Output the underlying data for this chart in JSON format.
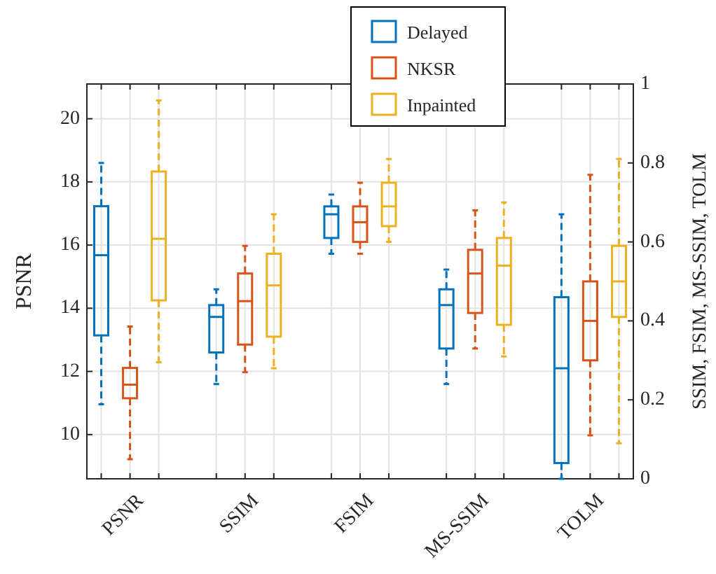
{
  "chart_data": {
    "type": "box",
    "categories": [
      "PSNR",
      "SSIM",
      "FSIM",
      "MS-SSIM",
      "TOLM"
    ],
    "ylabel": "PSNR",
    "y2label": "SSIM, FSIM, MS-SSIM, TOLM",
    "ylim": [
      8.6,
      21.1
    ],
    "yticks": [
      10,
      12,
      14,
      16,
      18,
      20
    ],
    "y2lim": [
      0,
      1
    ],
    "y2ticks": [
      0,
      0.2,
      0.4,
      0.6,
      0.8,
      1
    ],
    "grid": true,
    "legend": "top",
    "line_style": "dashed",
    "series": [
      {
        "name": "Delayed",
        "color": "#0072bd",
        "axis": "y",
        "boxes": [
          {
            "low": 10.96,
            "q1": 13.14,
            "median": 15.68,
            "q3": 17.23,
            "high": 18.6
          },
          null,
          null,
          null,
          null
        ]
      },
      {
        "name": "NKSR",
        "color": "#d95319",
        "axis": "y",
        "boxes": [
          {
            "low": 9.22,
            "q1": 11.15,
            "median": 11.58,
            "q3": 12.11,
            "high": 13.42
          },
          null,
          null,
          null,
          null
        ]
      },
      {
        "name": "Inpainted",
        "color": "#edb120",
        "axis": "y",
        "boxes": [
          {
            "low": 12.29,
            "q1": 14.25,
            "median": 16.2,
            "q3": 18.33,
            "high": 20.58
          },
          null,
          null,
          null,
          null
        ]
      },
      {
        "color": "#0072bd",
        "axis": "y2",
        "boxes": [
          null,
          {
            "low": 0.24,
            "q1": 0.32,
            "median": 0.41,
            "q3": 0.44,
            "high": 0.48
          },
          {
            "low": 0.57,
            "q1": 0.61,
            "median": 0.67,
            "q3": 0.69,
            "high": 0.72
          },
          {
            "low": 0.24,
            "q1": 0.33,
            "median": 0.44,
            "q3": 0.48,
            "high": 0.53
          },
          {
            "low": 0,
            "q1": 0.04,
            "median": 0.28,
            "q3": 0.46,
            "high": 0.67
          }
        ]
      },
      {
        "color": "#d95319",
        "axis": "y2",
        "boxes": [
          null,
          {
            "low": 0.27,
            "q1": 0.34,
            "median": 0.45,
            "q3": 0.52,
            "high": 0.59
          },
          {
            "low": 0.57,
            "q1": 0.6,
            "median": 0.65,
            "q3": 0.69,
            "high": 0.75
          },
          {
            "low": 0.33,
            "q1": 0.42,
            "median": 0.52,
            "q3": 0.58,
            "high": 0.68
          },
          {
            "low": 0.11,
            "q1": 0.3,
            "median": 0.4,
            "q3": 0.5,
            "high": 0.77
          }
        ]
      },
      {
        "color": "#edb120",
        "axis": "y2",
        "boxes": [
          null,
          {
            "low": 0.28,
            "q1": 0.36,
            "median": 0.49,
            "q3": 0.57,
            "high": 0.67
          },
          {
            "low": 0.6,
            "q1": 0.64,
            "median": 0.69,
            "q3": 0.75,
            "high": 0.81
          },
          {
            "low": 0.31,
            "q1": 0.39,
            "median": 0.54,
            "q3": 0.61,
            "high": 0.7
          },
          {
            "low": 0.09,
            "q1": 0.41,
            "median": 0.5,
            "q3": 0.59,
            "high": 0.81
          }
        ]
      }
    ]
  }
}
